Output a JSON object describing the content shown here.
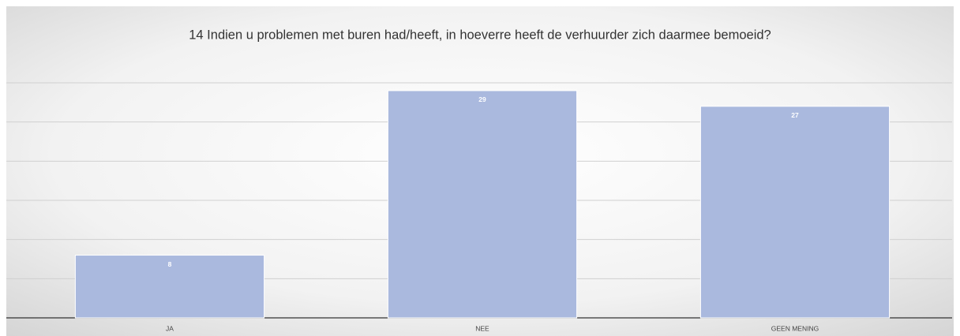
{
  "chart_data": {
    "type": "bar",
    "title": "14 Indien u problemen met buren had/heeft, in hoeverre heeft de verhuurder zich daarmee bemoeid?",
    "categories": [
      "JA",
      "NEE",
      "GEEN MENING"
    ],
    "values": [
      8,
      29,
      27
    ],
    "color": "#aab9de",
    "ylim": [
      0,
      30
    ],
    "yticks": [
      0,
      5,
      10,
      15,
      20,
      25,
      30
    ],
    "grid": true
  }
}
